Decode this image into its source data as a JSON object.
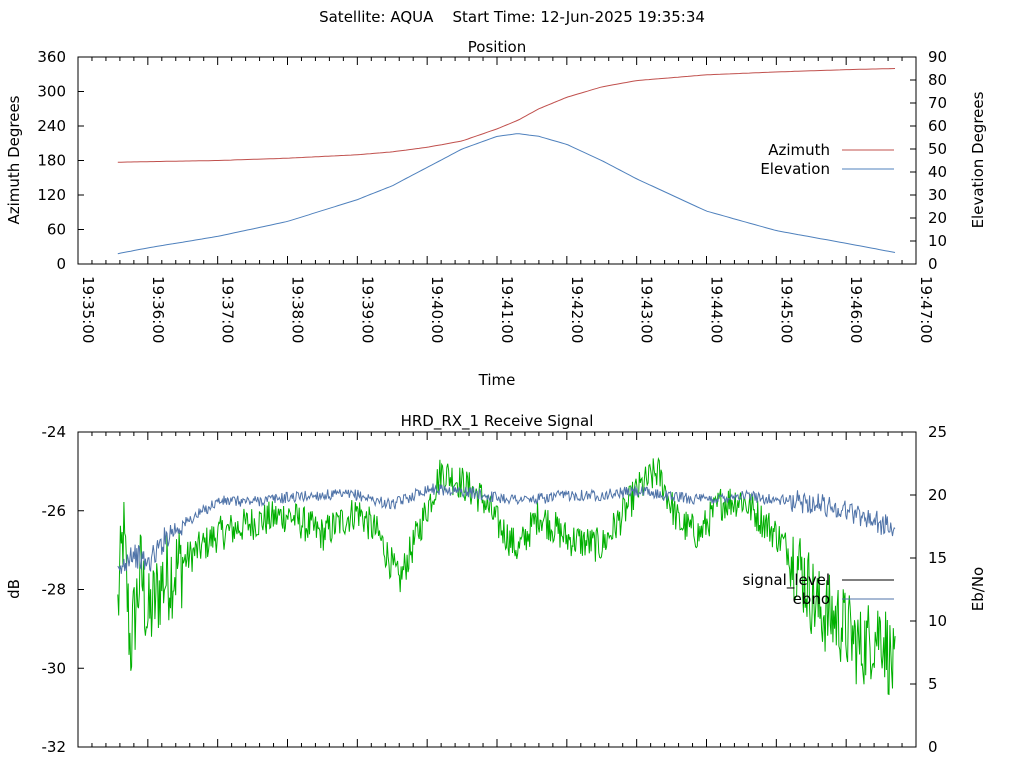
{
  "header": {
    "title": "Satellite: AQUA    Start Time: 12-Jun-2025 19:35:34"
  },
  "colors": {
    "azimuth": "#c0504d",
    "elevation": "#4f81bd",
    "signal_level": "#00b000",
    "ebno": "#4f73a8"
  },
  "chart_data": [
    {
      "type": "line",
      "title": "Position",
      "xlabel": "Time",
      "ylabel": "Azimuth Degrees",
      "y2label": "Elevation Degrees",
      "ylim": [
        0,
        360
      ],
      "y2lim": [
        0,
        90
      ],
      "yticks": [
        "0",
        "60",
        "120",
        "180",
        "240",
        "300",
        "360"
      ],
      "y2ticks": [
        "0",
        "10",
        "20",
        "30",
        "40",
        "50",
        "60",
        "70",
        "80",
        "90"
      ],
      "xticks": [
        "19:35:00",
        "19:36:00",
        "19:37:00",
        "19:38:00",
        "19:39:00",
        "19:40:00",
        "19:41:00",
        "19:42:00",
        "19:43:00",
        "19:44:00",
        "19:45:00",
        "19:46:00",
        "19:47:00"
      ],
      "xlim_minutes": [
        0,
        12
      ],
      "legend_position": "right",
      "grid": false,
      "series": [
        {
          "name": "Azimuth",
          "axis": "left",
          "x_minutes": [
            0.57,
            1.0,
            2.0,
            3.0,
            4.0,
            4.5,
            5.0,
            5.5,
            6.0,
            6.3,
            6.6,
            7.0,
            7.5,
            8.0,
            9.0,
            10.0,
            11.0,
            11.7
          ],
          "values": [
            177,
            178,
            180,
            184,
            190,
            195,
            203,
            214,
            235,
            250,
            270,
            290,
            308,
            319,
            329,
            334,
            338,
            340
          ]
        },
        {
          "name": "Elevation",
          "axis": "right",
          "x_minutes": [
            0.57,
            1.0,
            2.0,
            3.0,
            4.0,
            4.5,
            5.0,
            5.5,
            6.0,
            6.3,
            6.6,
            7.0,
            7.5,
            8.0,
            9.0,
            10.0,
            11.0,
            11.7
          ],
          "values": [
            4.5,
            7,
            12,
            18.5,
            28,
            34,
            42,
            50,
            55.5,
            56.7,
            55.5,
            52,
            45,
            37,
            23,
            14.5,
            9,
            5
          ]
        }
      ]
    },
    {
      "type": "line",
      "title": "HRD_RX_1 Receive Signal",
      "ylabel": "dB",
      "y2label": "Eb/No",
      "ylim": [
        -32,
        -24
      ],
      "y2lim": [
        0,
        25
      ],
      "yticks": [
        "-24",
        "-26",
        "-28",
        "-30",
        "-32"
      ],
      "y2ticks": [
        "0",
        "5",
        "10",
        "15",
        "20",
        "25"
      ],
      "xlim_minutes": [
        0,
        12
      ],
      "legend_position": "right",
      "grid": false,
      "series": [
        {
          "name": "signal_level",
          "axis": "left",
          "x_minutes": [
            0.57,
            0.65,
            0.75,
            0.9,
            1.0,
            1.2,
            1.5,
            2.0,
            2.5,
            3.0,
            3.5,
            4.0,
            4.3,
            4.6,
            4.9,
            5.2,
            5.5,
            5.8,
            6.0,
            6.3,
            6.6,
            7.0,
            7.5,
            7.8,
            8.0,
            8.3,
            8.6,
            8.9,
            9.2,
            9.5,
            10.0,
            10.3,
            10.6,
            10.9,
            11.2,
            11.5,
            11.7
          ],
          "values": [
            -28.5,
            -26.5,
            -29.5,
            -27.5,
            -28.8,
            -27.8,
            -27.3,
            -26.6,
            -26.3,
            -26.1,
            -26.6,
            -26.0,
            -26.6,
            -27.8,
            -26.4,
            -25.0,
            -25.3,
            -25.7,
            -26.3,
            -27.0,
            -26.1,
            -26.7,
            -26.9,
            -26.1,
            -25.5,
            -25.0,
            -26.3,
            -26.6,
            -25.8,
            -25.7,
            -26.6,
            -27.3,
            -28.5,
            -28.8,
            -29.5,
            -29.0,
            -30.2
          ]
        },
        {
          "name": "ebno",
          "axis": "right",
          "x_minutes": [
            0.57,
            0.75,
            1.0,
            1.3,
            1.6,
            2.0,
            2.5,
            3.0,
            3.5,
            4.0,
            4.5,
            5.0,
            5.5,
            6.0,
            6.5,
            7.0,
            7.5,
            8.0,
            8.5,
            9.0,
            9.5,
            10.0,
            10.5,
            11.0,
            11.4,
            11.7
          ],
          "values": [
            13.5,
            15.5,
            14.5,
            17.0,
            18.0,
            19.5,
            19.5,
            19.8,
            20.0,
            20.0,
            19.2,
            20.5,
            20.3,
            19.8,
            19.6,
            20.0,
            20.0,
            20.3,
            19.9,
            19.6,
            20.0,
            19.6,
            19.4,
            18.8,
            18.0,
            17.2
          ]
        }
      ]
    }
  ]
}
